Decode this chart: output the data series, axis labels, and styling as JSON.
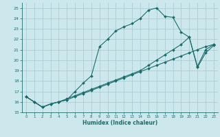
{
  "xlabel": "Humidex (Indice chaleur)",
  "bg_color": "#cce8ec",
  "grid_color": "#aacdd4",
  "line_color": "#1a6b6b",
  "xlim": [
    -0.5,
    23.5
  ],
  "ylim": [
    15,
    25.5
  ],
  "xticks": [
    0,
    1,
    2,
    3,
    4,
    5,
    6,
    7,
    8,
    9,
    10,
    11,
    12,
    13,
    14,
    15,
    16,
    17,
    18,
    19,
    20,
    21,
    22,
    23
  ],
  "yticks": [
    15,
    16,
    17,
    18,
    19,
    20,
    21,
    22,
    23,
    24,
    25
  ],
  "series": [
    {
      "x": [
        0,
        1,
        2,
        3,
        4,
        5,
        6,
        7,
        8,
        9,
        10,
        11,
        12,
        13,
        14,
        15,
        16,
        17,
        18,
        19,
        20,
        21,
        22,
        23
      ],
      "y": [
        16.5,
        16.0,
        15.5,
        15.8,
        16.0,
        16.2,
        17.0,
        17.8,
        18.5,
        21.3,
        22.0,
        22.8,
        23.2,
        23.5,
        24.0,
        24.8,
        25.0,
        24.2,
        24.1,
        22.7,
        22.2,
        19.3,
        20.7,
        21.4
      ]
    },
    {
      "x": [
        0,
        1,
        2,
        3,
        4,
        5,
        6,
        7,
        8,
        9,
        10,
        11,
        12,
        13,
        14,
        15,
        16,
        17,
        18,
        19,
        20,
        21,
        22,
        23
      ],
      "y": [
        16.5,
        16.0,
        15.5,
        15.8,
        16.0,
        16.2,
        16.5,
        16.8,
        17.1,
        17.4,
        17.7,
        18.0,
        18.3,
        18.6,
        18.9,
        19.2,
        19.5,
        19.8,
        20.1,
        20.4,
        20.7,
        21.0,
        21.3,
        21.5
      ]
    },
    {
      "x": [
        0,
        1,
        2,
        3,
        4,
        5,
        6,
        7,
        8,
        9,
        10,
        11,
        12,
        13,
        14,
        15,
        16,
        17,
        18,
        19,
        20,
        21,
        22,
        23
      ],
      "y": [
        16.5,
        16.0,
        15.5,
        15.8,
        16.0,
        16.3,
        16.6,
        16.9,
        17.2,
        17.5,
        17.8,
        18.1,
        18.4,
        18.7,
        19.0,
        19.5,
        20.0,
        20.5,
        21.0,
        21.5,
        22.2,
        19.4,
        21.0,
        21.5
      ]
    }
  ]
}
